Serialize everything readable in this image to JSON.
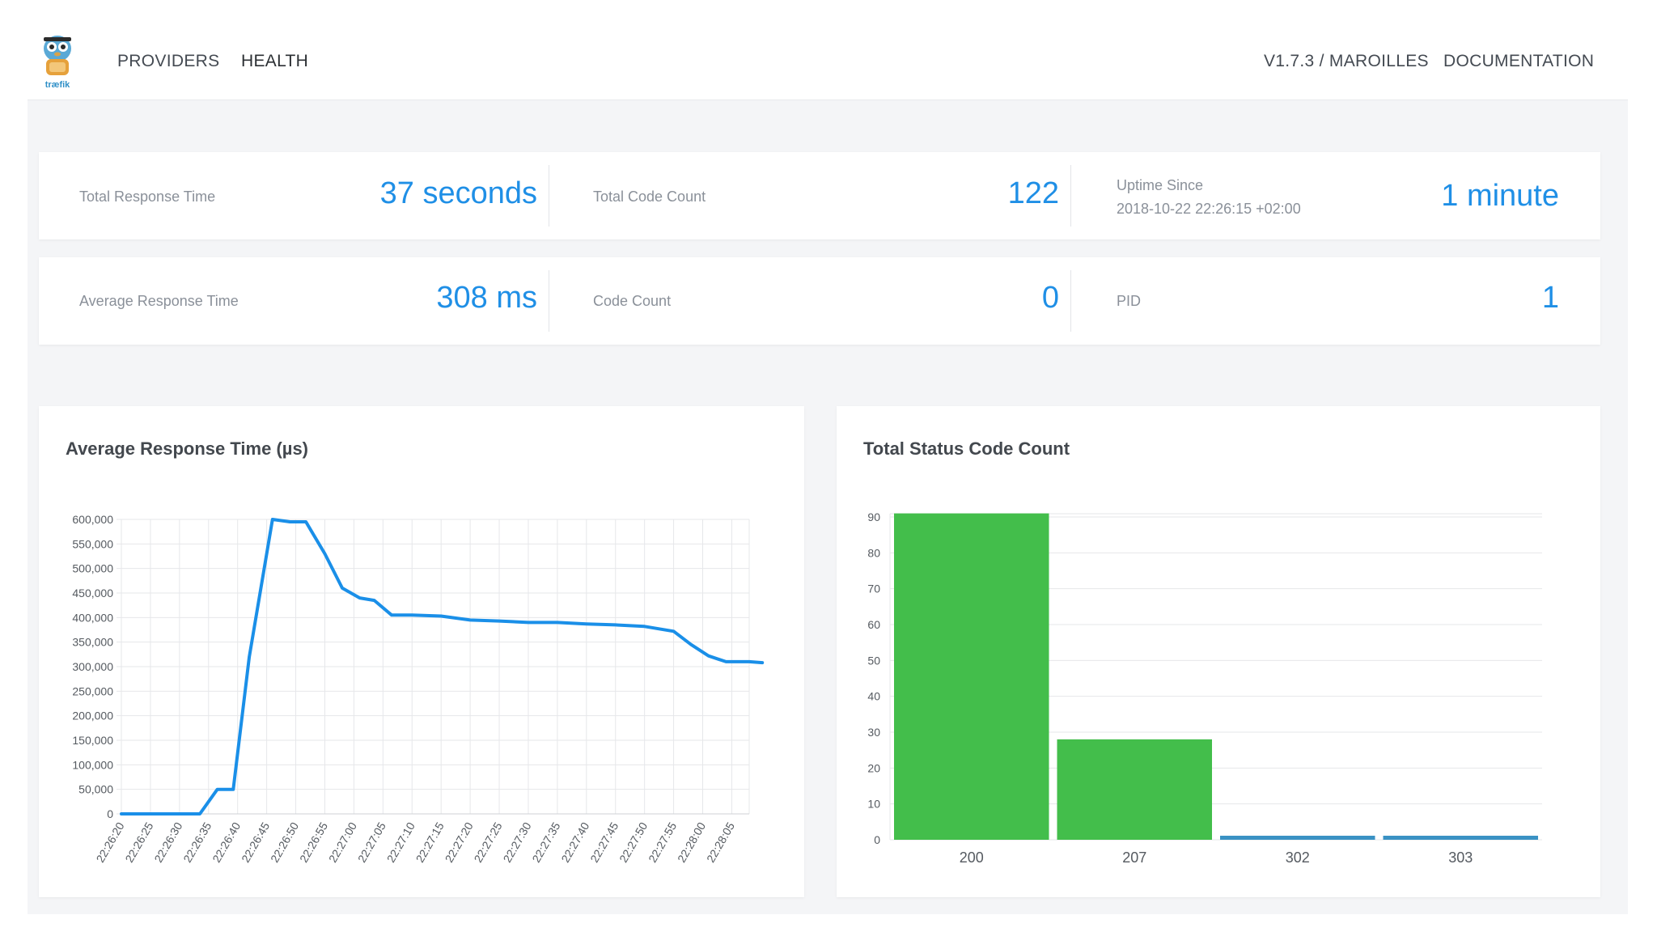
{
  "nav": {
    "providers": "PROVIDERS",
    "health": "HEALTH",
    "version": "V1.7.3 / MAROILLES",
    "documentation": "DOCUMENTATION",
    "logo_text": "træfik"
  },
  "stats": {
    "total_response_time": {
      "label": "Total Response Time",
      "value": "37 seconds"
    },
    "total_code_count": {
      "label": "Total Code Count",
      "value": "122"
    },
    "uptime": {
      "label": "Uptime Since",
      "since": "2018-10-22 22:26:15 +02:00",
      "value": "1 minute"
    },
    "average_response_time": {
      "label": "Average Response Time",
      "value": "308 ms"
    },
    "code_count": {
      "label": "Code Count",
      "value": "0"
    },
    "pid": {
      "label": "PID",
      "value": "1"
    }
  },
  "colors": {
    "accent": "#1f8fe6",
    "line": "#1a8fe8",
    "bar_green": "#43be4b",
    "bar_blue": "#3a92c4"
  },
  "chart_data": [
    {
      "type": "line",
      "title": "Average Response Time (µs)",
      "x": [
        "22:26:20",
        "22:26:25",
        "22:26:30",
        "22:26:35",
        "22:26:40",
        "22:26:45",
        "22:26:50",
        "22:26:55",
        "22:27:00",
        "22:27:05",
        "22:27:10",
        "22:27:15",
        "22:27:20",
        "22:27:25",
        "22:27:30",
        "22:27:35",
        "22:27:40",
        "22:27:45",
        "22:27:50",
        "22:27:55",
        "22:28:00",
        "22:28:05"
      ],
      "series": [
        {
          "points": [
            [
              0,
              0
            ],
            [
              1,
              0
            ],
            [
              2,
              0
            ],
            [
              2.7,
              0
            ],
            [
              3.3,
              50000
            ],
            [
              3.85,
              50000
            ],
            [
              4.4,
              320000
            ],
            [
              5.2,
              600000
            ],
            [
              5.8,
              595000
            ],
            [
              6.35,
              595000
            ],
            [
              7,
              530000
            ],
            [
              7.6,
              460000
            ],
            [
              8.2,
              440000
            ],
            [
              8.7,
              435000
            ],
            [
              9.3,
              405000
            ],
            [
              10,
              405000
            ],
            [
              11,
              403000
            ],
            [
              12,
              395000
            ],
            [
              13,
              393000
            ],
            [
              14,
              390000
            ],
            [
              15,
              390000
            ],
            [
              16,
              387000
            ],
            [
              17,
              385000
            ],
            [
              18,
              382000
            ],
            [
              19.0,
              372000
            ],
            [
              19.6,
              345000
            ],
            [
              20.2,
              322000
            ],
            [
              20.8,
              310000
            ],
            [
              21.6,
              310000
            ],
            [
              22.05,
              308000
            ]
          ]
        }
      ],
      "y_ticks": [
        "0",
        "50,000",
        "100,000",
        "150,000",
        "200,000",
        "250,000",
        "300,000",
        "350,000",
        "400,000",
        "450,000",
        "500,000",
        "550,000",
        "600,000"
      ],
      "ylim": [
        0,
        600000
      ]
    },
    {
      "type": "bar",
      "title": "Total Status Code Count",
      "categories": [
        "200",
        "207",
        "302",
        "303"
      ],
      "values": [
        91,
        28,
        1,
        1
      ],
      "y_ticks": [
        "0",
        "10",
        "20",
        "30",
        "40",
        "50",
        "60",
        "70",
        "80",
        "90"
      ],
      "ylim": [
        0,
        90
      ]
    }
  ]
}
